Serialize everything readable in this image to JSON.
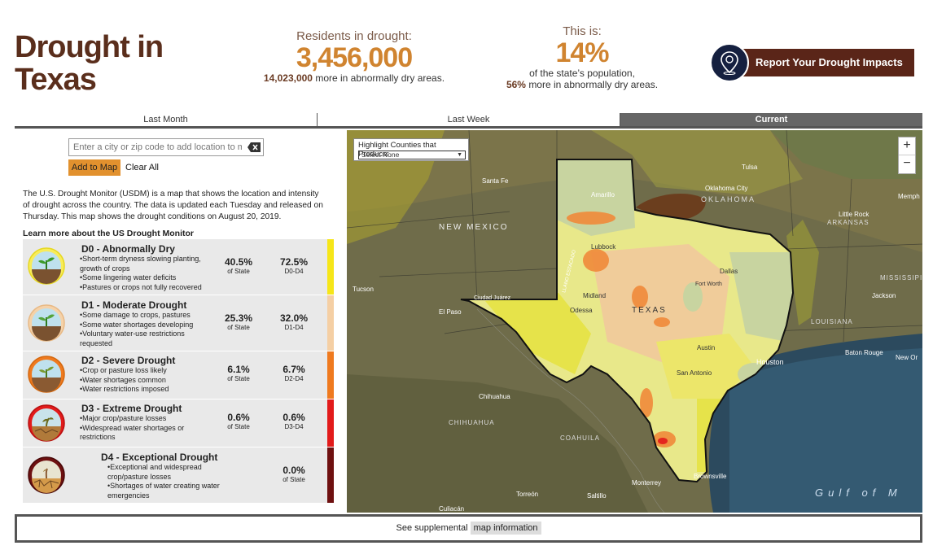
{
  "header": {
    "title_line1": "Drought in",
    "title_line2": "Texas",
    "residents_label": "Residents in drought:",
    "residents_value": "3,456,000",
    "abnormal_value": "14,023,000",
    "abnormal_text": "more in abnormally dry areas.",
    "this_is_label": "This is:",
    "pop_pct": "14%",
    "pop_text": "of the state’s population,",
    "pop_more_pct": "56%",
    "pop_more_text": "more in abnormally dry areas.",
    "report_button": "Report Your Drought Impacts"
  },
  "tabs": [
    "Last Month",
    "Last Week",
    "Current"
  ],
  "search": {
    "placeholder": "Enter a city or zip code to add location to map",
    "add_button": "Add to Map",
    "clear_all": "Clear All"
  },
  "description": "The U.S. Drought Monitor (USDM) is a map that shows the location and intensity of drought across the country. The data is updated each Tuesday and released on Thursday. This map shows the drought conditions on August 20, 2019.",
  "learn_more": "Learn more about the US Drought Monitor",
  "categories": [
    {
      "name": "D0 - Abnormally Dry",
      "bullets": [
        "Short-term dryness slowing planting, growth of crops",
        "Some lingering water deficits",
        "Pastures or crops not fully recovered"
      ],
      "pct_state": "40.5%",
      "pct_label": "of State",
      "pct_cum": "72.5%",
      "cum_label": "D0-D4",
      "color": "#f6e619"
    },
    {
      "name": "D1 - Moderate Drought",
      "bullets": [
        "Some damage to crops, pastures",
        "Some water shortages developing",
        "Voluntary water-use restrictions requested"
      ],
      "pct_state": "25.3%",
      "pct_label": "of State",
      "pct_cum": "32.0%",
      "cum_label": "D1-D4",
      "color": "#f5cfa4"
    },
    {
      "name": "D2 - Severe Drought",
      "bullets": [
        "Crop or pasture loss likely",
        "Water shortages common",
        "Water restrictions imposed"
      ],
      "pct_state": "6.1%",
      "pct_label": "of State",
      "pct_cum": "6.7%",
      "cum_label": "D2-D4",
      "color": "#ef7a1f"
    },
    {
      "name": "D3 - Extreme Drought",
      "bullets": [
        "Major crop/pasture losses",
        "Widespread water shortages or restrictions"
      ],
      "pct_state": "0.6%",
      "pct_label": "of State",
      "pct_cum": "0.6%",
      "cum_label": "D3-D4",
      "color": "#e21b1b"
    },
    {
      "name": "D4 - Exceptional Drought",
      "bullets": [
        "Exceptional and widespread crop/pasture losses",
        "Shortages of water creating water emergencies"
      ],
      "pct_state": "0.0%",
      "pct_label": "of State",
      "color": "#6e1010"
    }
  ],
  "map": {
    "highlight_label": "Highlight Counties that Produce:",
    "highlight_selected": "Select None",
    "zoom_in": "+",
    "zoom_out": "−",
    "places": [
      "Santa Fe",
      "Amarillo",
      "Oklahoma City",
      "OKLAHOMA",
      "Tulsa",
      "Memph",
      "NEW MEXICO",
      "Little Rock",
      "ARKANSAS",
      "Lubbock",
      "Dallas",
      "Fort Worth",
      "MISSISSIPI",
      "Tucson",
      "El Paso",
      "Ciudad Juárez",
      "Midland",
      "Odessa",
      "TEXAS",
      "Jackson",
      "LOUISIANA",
      "Baton Rouge",
      "New Or",
      "Austin",
      "Houston",
      "San Antonio",
      "Chihuahua",
      "CHIHUAHUA",
      "COAHUILA",
      "Monterrey",
      "Torreón",
      "Saltillo",
      "Brownsville",
      "Culiacán",
      "Gulf of M",
      "LLANO ESTACADO"
    ]
  },
  "footer": {
    "text": "See supplemental",
    "link": "map information"
  }
}
